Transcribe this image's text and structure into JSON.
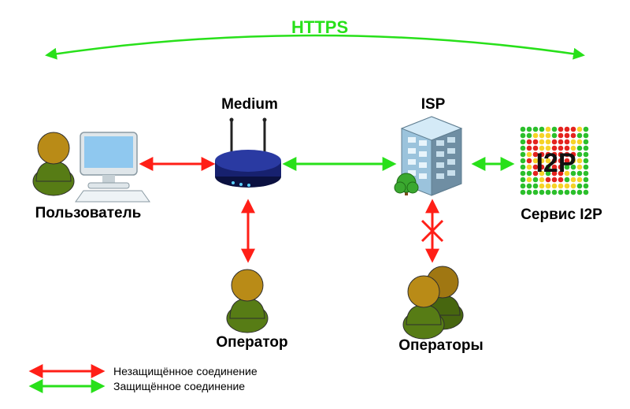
{
  "topLabel": {
    "text": "HTTPS",
    "color": "#28e01a",
    "fontSize": 22,
    "fontWeight": 700
  },
  "nodes": {
    "user": {
      "label": "Пользователь",
      "labelColor": "#111111",
      "labelSize": 19
    },
    "medium": {
      "label": "Medium",
      "labelColor": "#111111",
      "labelSize": 19
    },
    "isp": {
      "label": "ISP",
      "labelColor": "#111111",
      "labelSize": 19
    },
    "service": {
      "label": "Сервис I2P",
      "labelColor": "#111111",
      "labelSize": 19,
      "logoText": "I2P"
    },
    "operator": {
      "label": "Оператор",
      "labelColor": "#111111",
      "labelSize": 19
    },
    "operators": {
      "label": "Операторы",
      "labelColor": "#111111",
      "labelSize": 19
    }
  },
  "legend": {
    "unsecure": {
      "text": "Незащищённое соединение",
      "color": "#111111",
      "arrowColor": "#ff1f17",
      "fontSize": 14
    },
    "secure": {
      "text": "Защищённое соединение",
      "color": "#111111",
      "arrowColor": "#28e01a",
      "fontSize": 14
    }
  },
  "arrows": {
    "unsecureColor": "#ff1f17",
    "secureColor": "#28e01a",
    "blockedColor": "#ff1f17",
    "width": 3
  },
  "colors": {
    "personHead": "#b98b17",
    "personBody": "#577c15",
    "personStroke": "#2e2e2e",
    "routerBody": "#17216f",
    "routerDark": "#0b1140",
    "routerAntenna": "#222222",
    "monitorFrame": "#dfe6ea",
    "monitorScreen": "#8fc8ef",
    "buildingLight": "#d4eaf7",
    "buildingMid": "#9bc3dc",
    "buildingDark": "#6f8ea3",
    "treeGreen": "#3aa82f",
    "treeTrunk": "#7a4a1a",
    "dotGreen": "#2bbf2b",
    "dotYellow": "#f6d328",
    "dotRed": "#e4231e"
  },
  "i2pDots": {
    "rows": 11,
    "cols": 11,
    "cell": 8,
    "pattern": [
      "ggggygrrryg",
      "ggyyygrrrgg",
      "grryyrrryyg",
      "grryyrrrygg",
      "gyrrrrrrrgg",
      "gryyyrrryyg",
      "gyrrgrrggyg",
      "ggrygrryggg",
      "gygyrrrgyyg",
      "gggyyyyyygg",
      "ggggggggggg"
    ]
  }
}
